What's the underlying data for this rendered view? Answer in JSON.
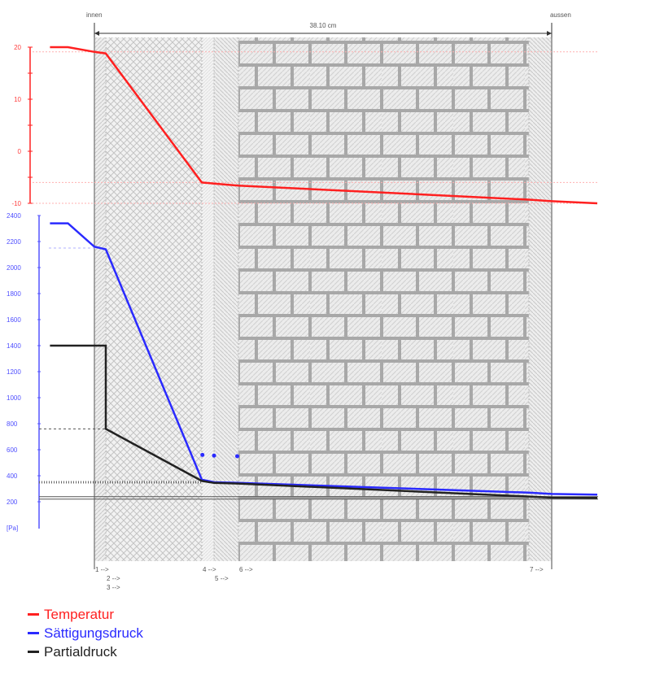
{
  "chart_data": {
    "type": "line",
    "title": "",
    "header": {
      "inside_label": "innen",
      "outside_label": "aussen",
      "thickness_label": "38.10 cm"
    },
    "x_unit": "cm",
    "layer_boundaries_cm": [
      0,
      0.95,
      8.95,
      9.97,
      12.0,
      36.2,
      38.1
    ],
    "layers": [
      {
        "from": 0,
        "to": 0.95,
        "pattern": "plaster"
      },
      {
        "from": 0.95,
        "to": 8.95,
        "pattern": "crosshatch"
      },
      {
        "from": 8.95,
        "to": 9.97,
        "pattern": "light"
      },
      {
        "from": 9.97,
        "to": 12.0,
        "pattern": "diagonal"
      },
      {
        "from": 12.0,
        "to": 36.2,
        "pattern": "brick"
      },
      {
        "from": 36.2,
        "to": 38.1,
        "pattern": "diagonal"
      }
    ],
    "boundary_labels": [
      {
        "label": "1 -->",
        "x": 0,
        "row": 0
      },
      {
        "label": "2 -->",
        "x": 0.95,
        "row": 1
      },
      {
        "label": "3 -->",
        "x": 0.95,
        "row": 2
      },
      {
        "label": "4 -->",
        "x": 8.95,
        "row": 0
      },
      {
        "label": "5 -->",
        "x": 9.97,
        "row": 1
      },
      {
        "label": "6 -->",
        "x": 12.0,
        "row": 0
      },
      {
        "label": "7 -->",
        "x": 36.2,
        "row": 0
      }
    ],
    "temperature_axis": {
      "ylim": [
        -10,
        20
      ],
      "ticks": [
        "20",
        "10",
        "0",
        "-10"
      ],
      "tick_values": [
        20,
        10,
        0,
        -10
      ]
    },
    "pressure_axis": {
      "ylim": [
        200,
        2400
      ],
      "unit_label": "[Pa]",
      "ticks": [
        "2400",
        "2200",
        "2000",
        "1800",
        "1600",
        "1400",
        "1200",
        "1000",
        "800",
        "600",
        "400",
        "200"
      ],
      "tick_values": [
        2400,
        2200,
        2000,
        1800,
        1600,
        1400,
        1200,
        1000,
        800,
        600,
        400,
        200
      ]
    },
    "series": [
      {
        "name": "Temperatur",
        "axis": "temperature",
        "color": "#ff2020",
        "x": [
          -3.7,
          -2.2,
          0,
          0.95,
          8.95,
          9.97,
          12.0,
          36.2,
          38.1,
          41.9
        ],
        "y": [
          20,
          20,
          19.1,
          18.8,
          -6.0,
          -6.2,
          -6.6,
          -9.3,
          -9.6,
          -10
        ]
      },
      {
        "name": "Sättigungsdruck",
        "axis": "pressure",
        "color": "#2a2aff",
        "x": [
          -3.7,
          -2.2,
          0,
          0.95,
          8.95,
          9.97,
          12.0,
          36.2,
          38.1,
          41.9
        ],
        "y": [
          2340,
          2340,
          2160,
          2140,
          370,
          350,
          345,
          270,
          260,
          255
        ]
      },
      {
        "name": "Partialdruck",
        "axis": "pressure",
        "color": "#222222",
        "x": [
          -3.7,
          0.95,
          0.95,
          8.95,
          9.97,
          12.0,
          36.2,
          38.1,
          41.9
        ],
        "y": [
          1400,
          1400,
          760,
          360,
          345,
          340,
          240,
          232,
          230
        ]
      }
    ],
    "condensation_points": {
      "x": [
        9.0,
        9.97,
        11.9
      ],
      "y": [
        560,
        555,
        550
      ],
      "color": "#2a2aff"
    },
    "reference_lines": {
      "temperature": [
        19.1,
        -6.0,
        -10
      ],
      "pressure_dashed": [
        2150,
        760
      ],
      "pressure_hatched": 350,
      "pressure_double": 230
    },
    "legend": [
      {
        "label": "Temperatur",
        "color": "#ff2020"
      },
      {
        "label": "Sättigungsdruck",
        "color": "#2a2aff"
      },
      {
        "label": "Partialdruck",
        "color": "#222222"
      }
    ],
    "legend_placement": "bottom-left"
  }
}
